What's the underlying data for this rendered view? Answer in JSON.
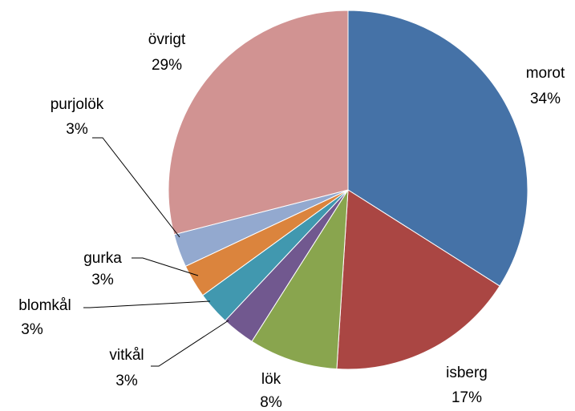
{
  "chart_data": {
    "type": "pie",
    "categories": [
      "morot",
      "isberg",
      "lök",
      "vitkål",
      "blomkål",
      "gurka",
      "purjolök",
      "övrigt"
    ],
    "values": [
      34,
      17,
      8,
      3,
      3,
      3,
      3,
      29
    ],
    "value_labels": [
      "34%",
      "17%",
      "8%",
      "3%",
      "3%",
      "3%",
      "3%",
      "29%"
    ],
    "colors": [
      "#4572a7",
      "#aa4643",
      "#89a54e",
      "#71588f",
      "#4198af",
      "#db843d",
      "#93a9cf",
      "#d19392"
    ]
  }
}
